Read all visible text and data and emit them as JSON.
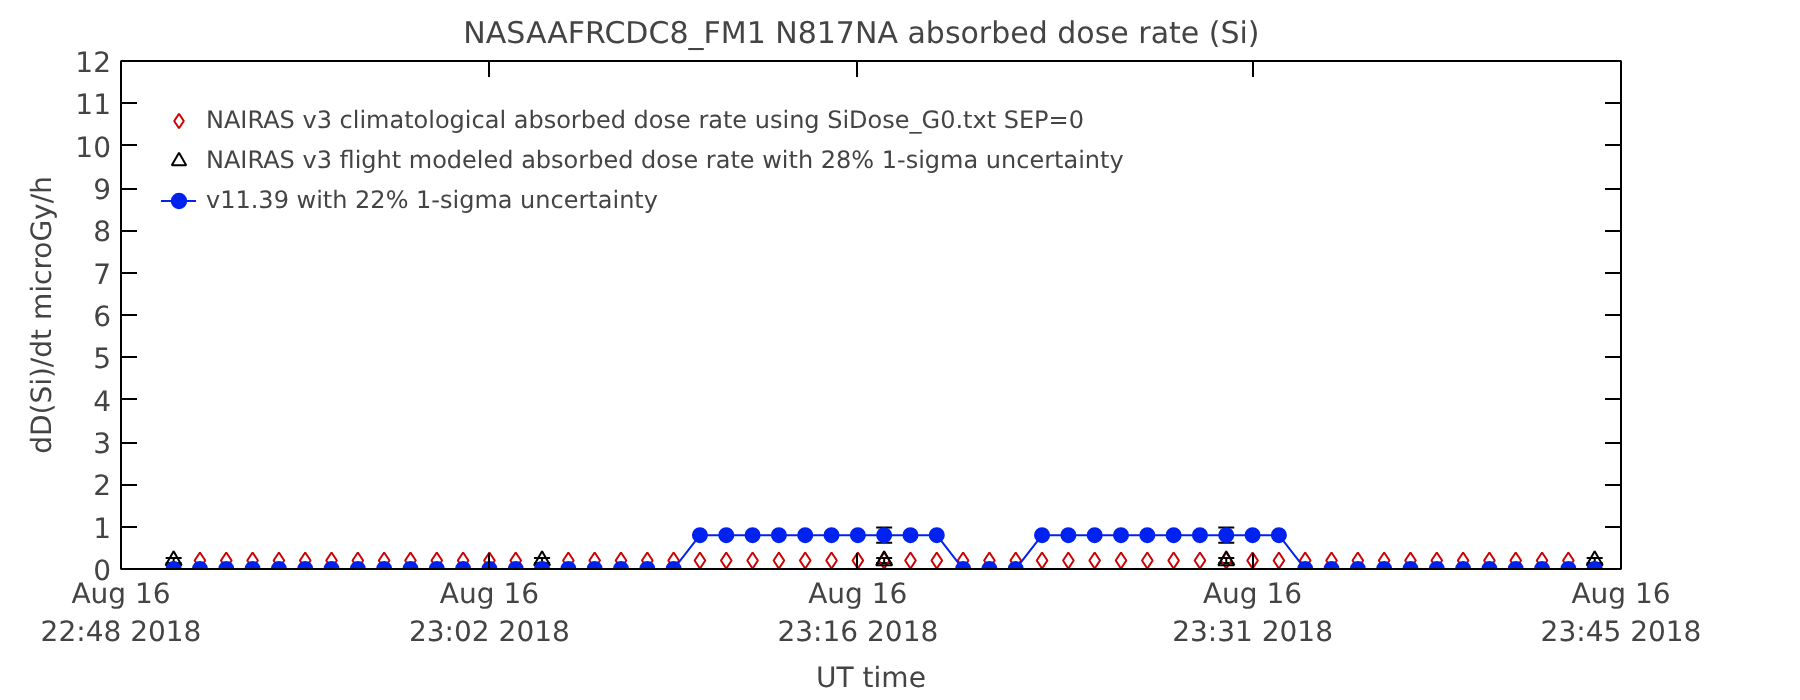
{
  "chart_data": {
    "type": "line",
    "title": "NASAAFRCDC8_FM1   N817NA absorbed dose rate (Si)",
    "xlabel": "UT time",
    "ylabel": "dD(Si)/dt microGy/h",
    "x": [
      "2018-08-16T22:50",
      "2018-08-16T22:51",
      "2018-08-16T22:52",
      "2018-08-16T22:53",
      "2018-08-16T22:54",
      "2018-08-16T22:55",
      "2018-08-16T22:56",
      "2018-08-16T22:57",
      "2018-08-16T22:58",
      "2018-08-16T22:59",
      "2018-08-16T23:00",
      "2018-08-16T23:01",
      "2018-08-16T23:02",
      "2018-08-16T23:03",
      "2018-08-16T23:04",
      "2018-08-16T23:05",
      "2018-08-16T23:06",
      "2018-08-16T23:07",
      "2018-08-16T23:08",
      "2018-08-16T23:09",
      "2018-08-16T23:10",
      "2018-08-16T23:11",
      "2018-08-16T23:12",
      "2018-08-16T23:13",
      "2018-08-16T23:14",
      "2018-08-16T23:15",
      "2018-08-16T23:16",
      "2018-08-16T23:17",
      "2018-08-16T23:18",
      "2018-08-16T23:19",
      "2018-08-16T23:20",
      "2018-08-16T23:21",
      "2018-08-16T23:22",
      "2018-08-16T23:23",
      "2018-08-16T23:24",
      "2018-08-16T23:25",
      "2018-08-16T23:26",
      "2018-08-16T23:27",
      "2018-08-16T23:28",
      "2018-08-16T23:29",
      "2018-08-16T23:30",
      "2018-08-16T23:31",
      "2018-08-16T23:32",
      "2018-08-16T23:33",
      "2018-08-16T23:34",
      "2018-08-16T23:35",
      "2018-08-16T23:36",
      "2018-08-16T23:37",
      "2018-08-16T23:38",
      "2018-08-16T23:39",
      "2018-08-16T23:40",
      "2018-08-16T23:41",
      "2018-08-16T23:42",
      "2018-08-16T23:43",
      "2018-08-16T23:44"
    ],
    "series": [
      {
        "name": "NAIRAS v3 climatological absorbed dose rate using SiDose_G0.txt SEP=0",
        "type": "scatter",
        "marker": "diamond",
        "color": "#cc0000",
        "values": [
          null,
          0.2,
          0.2,
          0.2,
          0.2,
          0.2,
          0.2,
          0.2,
          0.2,
          0.2,
          0.2,
          0.2,
          0.2,
          0.2,
          null,
          0.2,
          0.2,
          0.2,
          0.2,
          0.2,
          0.2,
          0.2,
          0.2,
          0.2,
          0.2,
          0.2,
          0.2,
          0.2,
          0.2,
          0.2,
          0.2,
          0.2,
          0.2,
          0.2,
          0.2,
          0.2,
          0.2,
          0.2,
          0.2,
          0.2,
          0.2,
          0.2,
          0.2,
          0.2,
          0.2,
          0.2,
          0.2,
          0.2,
          0.2,
          0.2,
          0.2,
          0.2,
          0.2,
          0.2,
          null
        ]
      },
      {
        "name": "NAIRAS v3 flight modeled absorbed dose rate with 28% 1-sigma uncertainty",
        "type": "scatter",
        "marker": "triangle",
        "color": "#000000",
        "values": [
          0.2,
          null,
          null,
          null,
          null,
          null,
          null,
          null,
          null,
          null,
          null,
          null,
          null,
          null,
          0.2,
          null,
          null,
          null,
          null,
          null,
          null,
          null,
          null,
          null,
          null,
          null,
          null,
          0.2,
          null,
          null,
          null,
          null,
          null,
          null,
          null,
          null,
          null,
          null,
          null,
          null,
          0.2,
          null,
          null,
          null,
          null,
          null,
          null,
          null,
          null,
          null,
          null,
          null,
          null,
          null,
          0.2
        ],
        "errors": [
          0.06,
          null,
          null,
          null,
          null,
          null,
          null,
          null,
          null,
          null,
          null,
          null,
          null,
          null,
          0.06,
          null,
          null,
          null,
          null,
          null,
          null,
          null,
          null,
          null,
          null,
          null,
          null,
          0.06,
          null,
          null,
          null,
          null,
          null,
          null,
          null,
          null,
          null,
          null,
          null,
          null,
          0.06,
          null,
          null,
          null,
          null,
          null,
          null,
          null,
          null,
          null,
          null,
          null,
          null,
          null,
          0.06
        ]
      },
      {
        "name": "v11.39 with 22% 1-sigma uncertainty",
        "marker": "circle",
        "color": "#0022ee",
        "values": [
          0,
          0,
          0,
          0,
          0,
          0,
          0,
          0,
          0,
          0,
          0,
          0,
          0,
          0,
          0,
          0,
          0,
          0,
          0,
          0,
          0.8,
          0.8,
          0.8,
          0.8,
          0.8,
          0.8,
          0.8,
          0.8,
          0.8,
          0.8,
          0,
          0,
          0,
          0.8,
          0.8,
          0.8,
          0.8,
          0.8,
          0.8,
          0.8,
          0.8,
          0.8,
          0.8,
          0,
          0,
          0,
          0,
          0,
          0,
          0,
          0,
          0,
          0,
          0,
          0
        ],
        "errors": [
          null,
          null,
          null,
          null,
          null,
          null,
          null,
          null,
          null,
          null,
          null,
          null,
          null,
          null,
          null,
          null,
          null,
          null,
          null,
          null,
          null,
          null,
          null,
          null,
          null,
          null,
          null,
          0.18,
          null,
          null,
          null,
          null,
          null,
          null,
          null,
          null,
          null,
          null,
          null,
          null,
          0.18,
          null,
          null,
          null,
          null,
          null,
          null,
          null,
          null,
          null,
          null,
          null,
          null,
          null,
          null
        ]
      }
    ],
    "xlim": [
      "2018-08-16T22:48",
      "2018-08-16T23:45"
    ],
    "xticks": [
      {
        "value": "2018-08-16T22:48",
        "label": "Aug 16\n22:48 2018"
      },
      {
        "value": "2018-08-16T23:02",
        "label": "Aug 16\n23:02 2018"
      },
      {
        "value": "2018-08-16T23:16",
        "label": "Aug 16\n23:16 2018"
      },
      {
        "value": "2018-08-16T23:31",
        "label": "Aug 16\n23:31 2018"
      },
      {
        "value": "2018-08-16T23:45",
        "label": "Aug 16\n23:45 2018"
      }
    ],
    "ylim": [
      0,
      12
    ],
    "yticks": [
      0,
      1,
      2,
      3,
      4,
      5,
      6,
      7,
      8,
      9,
      10,
      11,
      12
    ],
    "grid": false,
    "legend": "top left"
  }
}
